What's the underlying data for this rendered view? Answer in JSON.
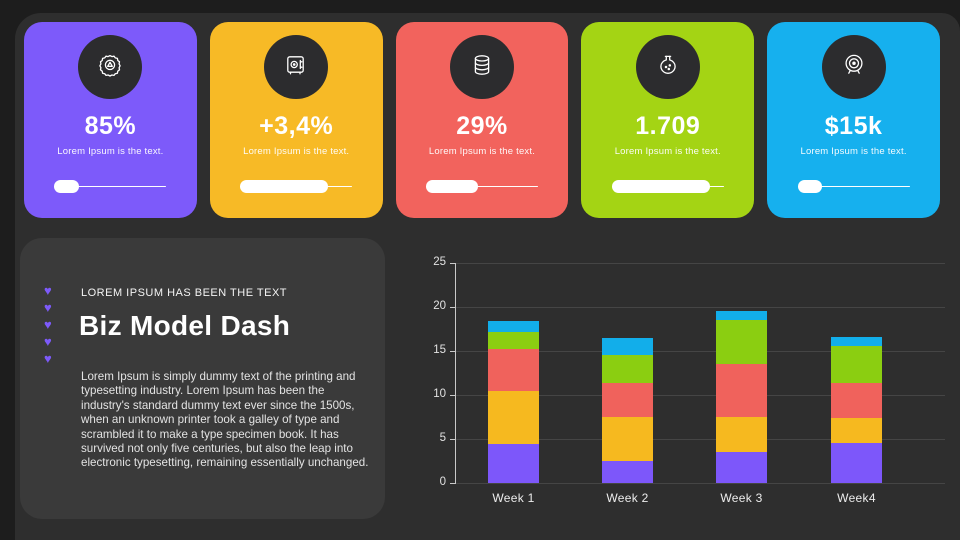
{
  "slide": {
    "frame_background": "#1d1d1d",
    "background": "#2e2e2e",
    "panel_background": "#3a3a3a"
  },
  "cards": [
    {
      "icon": "gear-icon",
      "value": "85%",
      "caption": "Lorem Ipsum is the text.",
      "color": "#7d5afa",
      "progress_pct": 22
    },
    {
      "icon": "safe-icon",
      "value": "+3,4%",
      "caption": "Lorem Ipsum is the text.",
      "color": "#f7ba26",
      "progress_pct": 78
    },
    {
      "icon": "database-icon",
      "value": "29%",
      "caption": "Lorem Ipsum is the text.",
      "color": "#f2635d",
      "progress_pct": 46
    },
    {
      "icon": "flask-icon",
      "value": "1.709",
      "caption": "Lorem Ipsum is the text.",
      "color": "#a4d414",
      "progress_pct": 88
    },
    {
      "icon": "webcam-icon",
      "value": "$15k",
      "caption": "Lorem Ipsum is the text.",
      "color": "#16b0ee",
      "progress_pct": 22
    }
  ],
  "panel": {
    "eyebrow": "LOREM IPSUM HAS BEEN THE TEXT",
    "title": "Biz Model Dash",
    "body": "Lorem Ipsum is simply dummy text of the printing and typesetting industry. Lorem Ipsum has been the industry's standard dummy text ever since the 1500s, when an unknown printer took a galley of type and scrambled it to make a type specimen book. It has survived not only five centuries, but also the leap into electronic typesetting, remaining essentially unchanged.",
    "bullet_icon": "heart-icon",
    "bullet_count": 5,
    "bullet_color": "#7d5afa"
  },
  "chart_data": {
    "type": "bar",
    "stacked": true,
    "title": "",
    "xlabel": "",
    "ylabel": "",
    "categories": [
      "Week 1",
      "Week 2",
      "Week 3",
      "Week4"
    ],
    "series": [
      {
        "name": "purple",
        "color": "#7d57fa",
        "values": [
          4.4,
          2.5,
          3.5,
          4.6
        ]
      },
      {
        "name": "yellow",
        "color": "#f6b91f",
        "values": [
          6.0,
          5.0,
          4.0,
          2.8
        ]
      },
      {
        "name": "coral",
        "color": "#f0625c",
        "values": [
          4.8,
          3.9,
          6.0,
          4.0
        ]
      },
      {
        "name": "green",
        "color": "#8bce11",
        "values": [
          2.0,
          3.1,
          5.0,
          4.2
        ]
      },
      {
        "name": "blue",
        "color": "#12aeea",
        "values": [
          1.2,
          2.0,
          1.0,
          1.0
        ]
      }
    ],
    "totals": [
      18.4,
      16.5,
      19.5,
      16.6
    ],
    "ylim": [
      0,
      25
    ],
    "yticks": [
      0,
      5,
      10,
      15,
      20,
      25
    ],
    "grid": true,
    "legend": false
  }
}
